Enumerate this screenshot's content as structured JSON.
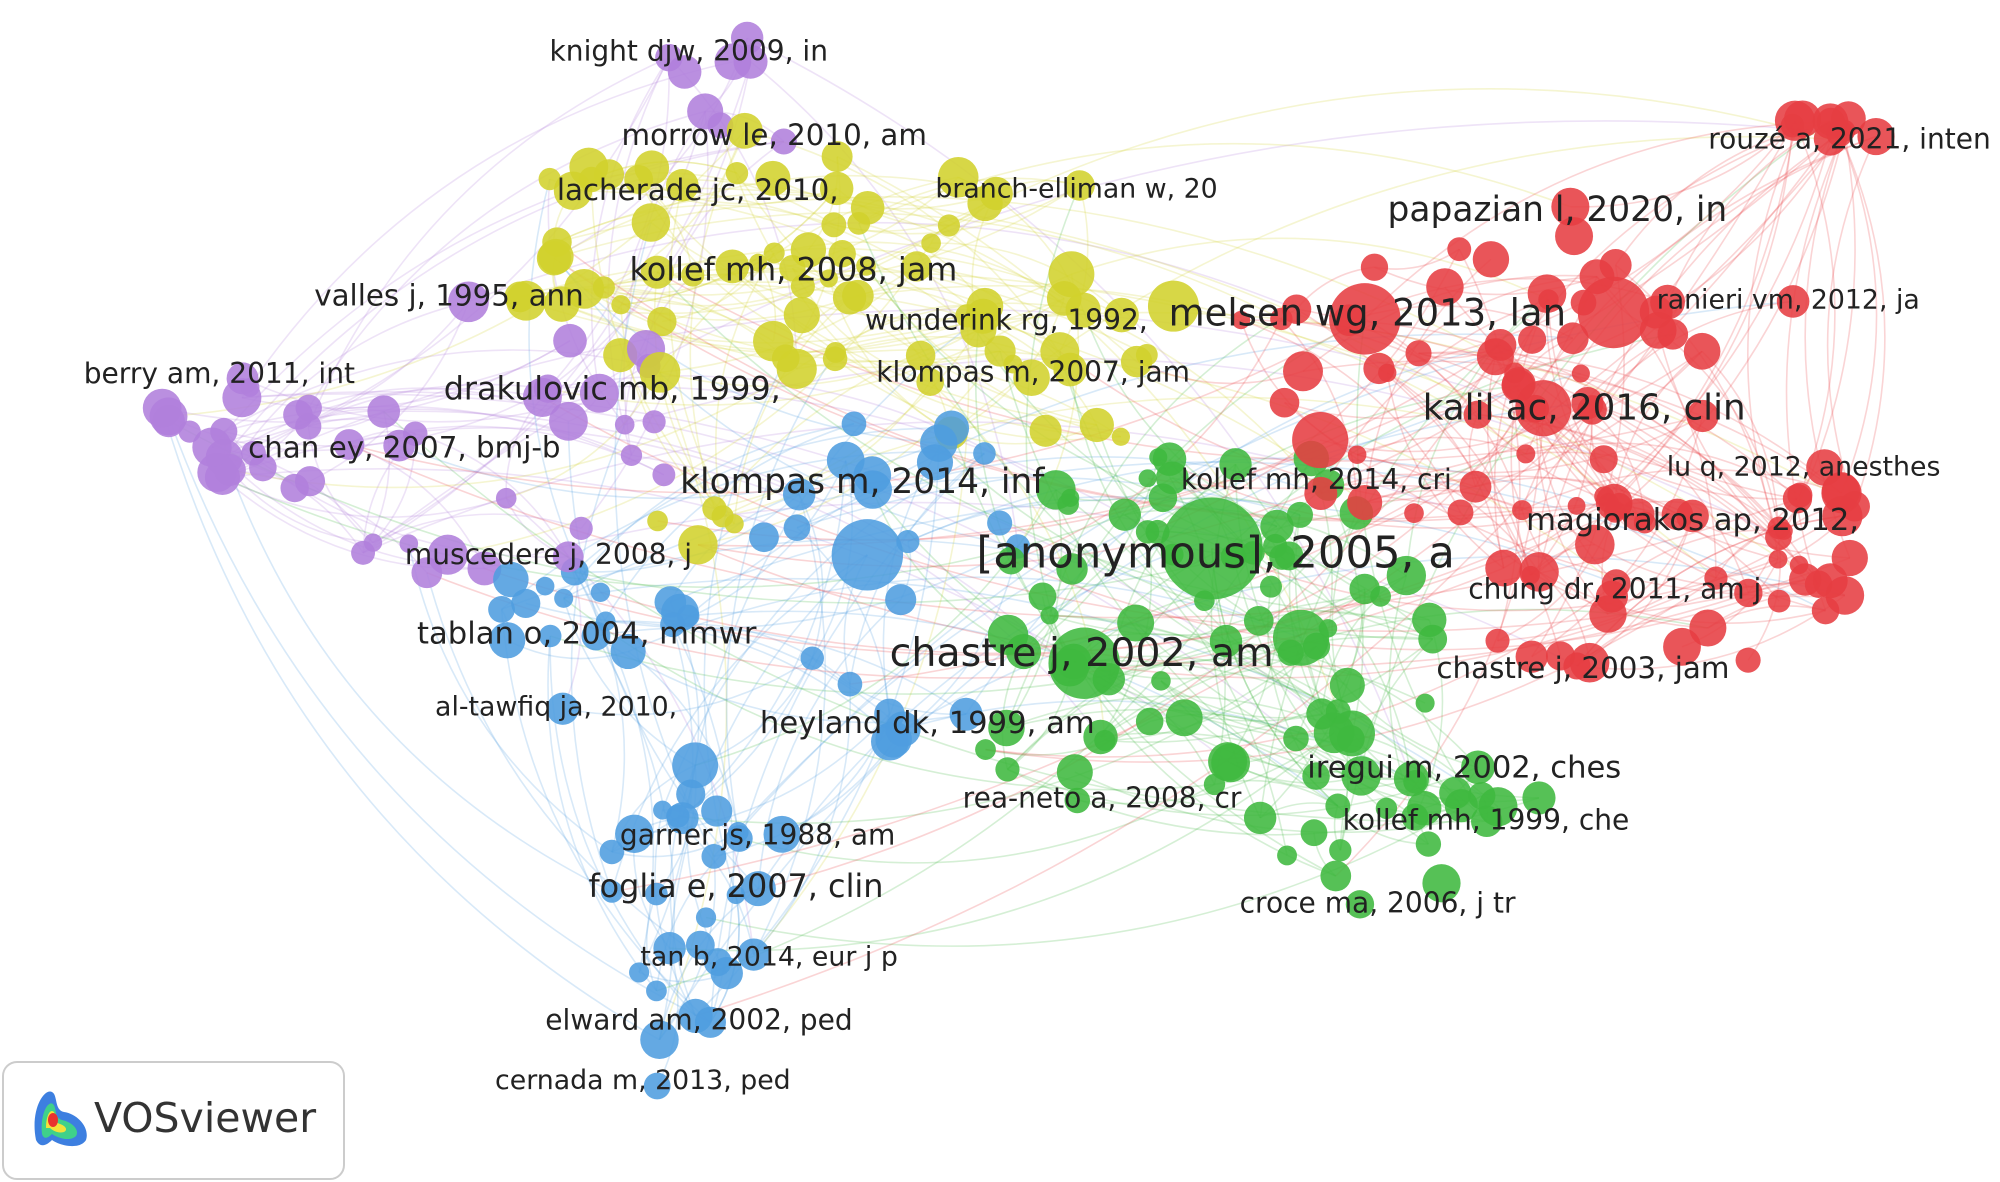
{
  "clusters": [
    {
      "color": "#b07fdc",
      "nodes": [
        "knight djw, 2009, in",
        "morrow le, 2010, am",
        "valles j, 1995, ann",
        "berry am, 2011, int",
        "drakulovic mb, 1999,",
        "chan ey, 2007, bmj-b",
        "muscedere j, 2008, j"
      ]
    },
    {
      "color": "#d2d12c",
      "nodes": [
        "lacherade jc, 2010,",
        "branch-elliman w, 20",
        "kollef mh, 2008, jam",
        "wunderink rg, 1992,",
        "klompas m, 2007, jam"
      ]
    },
    {
      "color": "#4f9ddf",
      "nodes": [
        "klompas m, 2014, inf",
        "tablan o, 2004, mmwr",
        "al-tawfiq ja, 2010,",
        "heyland dk, 1999, am",
        "garner js, 1988, am",
        "foglia e, 2007, clin",
        "tan b, 2014, eur j p",
        "elward am, 2002, ped",
        "cernada m, 2013, ped"
      ]
    },
    {
      "color": "#3fb83f",
      "nodes": [
        "[anonymous], 2005, a",
        "chastre j, 2002, am",
        "kollef mh, 2014, cri",
        "iregui m, 2002, ches",
        "rea-neto a, 2008, cr",
        "kollef mh, 1999, che",
        "croce ma, 2006, j tr"
      ]
    },
    {
      "color": "#e63d42",
      "nodes": [
        "rouzé a, 2021, inten",
        "papazian l, 2020, in",
        "melsen wg, 2013, lan",
        "ranieri vm, 2012, ja",
        "kalil ac, 2016, clin",
        "lu q, 2012, anesthes",
        "magiorakos ap, 2012,",
        "chung dr, 2011, am j",
        "chastre j, 2003, jam"
      ]
    }
  ],
  "logo": {
    "text": "VOSviewer"
  }
}
